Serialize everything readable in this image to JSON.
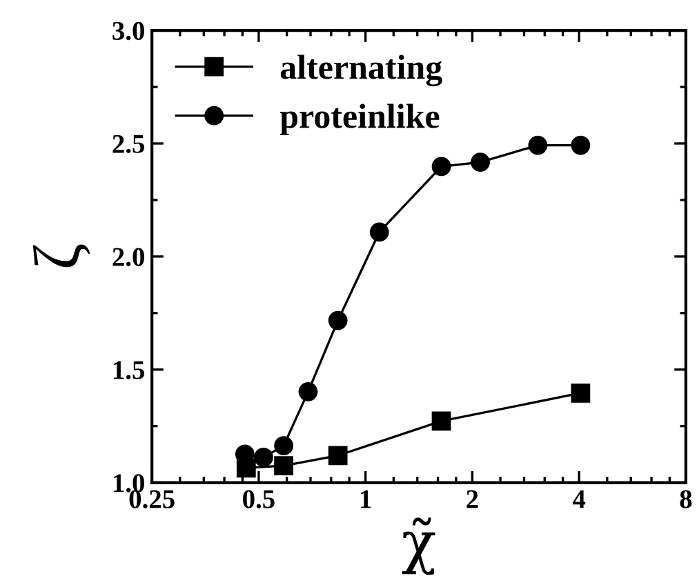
{
  "chart_data": {
    "type": "line",
    "xlabel": "χ̃",
    "ylabel": "ζ",
    "series": [
      {
        "name": "alternating",
        "color": "#000000",
        "marker": "square",
        "x": [
          0.461,
          0.588,
          0.836,
          1.636,
          4.04
        ],
        "values": [
          1.065,
          1.075,
          1.12,
          1.272,
          1.396
        ]
      },
      {
        "name": "proteinlike",
        "color": "#000000",
        "marker": "circle",
        "x": [
          0.457,
          0.516,
          0.588,
          0.689,
          0.836,
          1.094,
          1.636,
          2.107,
          3.06,
          4.04
        ],
        "values": [
          1.126,
          1.112,
          1.163,
          1.402,
          1.717,
          2.108,
          2.398,
          2.417,
          2.492,
          2.492
        ]
      }
    ],
    "log": "x",
    "xlim": [
      0.25,
      8
    ],
    "xticks": [
      0.25,
      0.5,
      1,
      2,
      4,
      8
    ],
    "ylim": [
      1.0,
      3.0
    ],
    "yticks": [
      {
        "value": 1.0,
        "label": "1.0"
      },
      {
        "value": 1.5,
        "label": "1.5"
      },
      {
        "value": 2.0,
        "label": "2.0"
      },
      {
        "value": 2.5,
        "label": "2.5"
      },
      {
        "value": 3.0,
        "label": "3.0"
      }
    ],
    "grid": false,
    "legend": "top left",
    "line_style": "solid"
  }
}
